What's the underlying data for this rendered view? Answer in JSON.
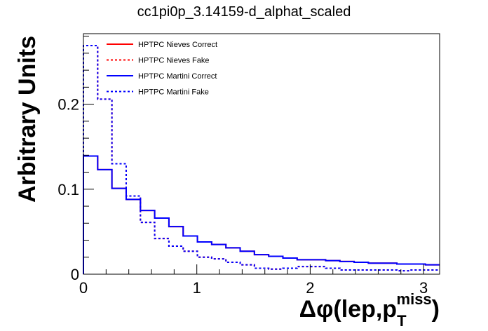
{
  "chart_data": {
    "type": "line",
    "title": "cc1pi0p_3.14159-d_alphat_scaled",
    "ylabel": "Arbitrary Units",
    "xlabel": {
      "prefix": "Δφ(lep,p",
      "superscript": "miss",
      "subscript": "T",
      "suffix": ")"
    },
    "xlim": [
      0,
      3.14159
    ],
    "ylim": [
      0,
      0.283
    ],
    "x_ticks": [
      {
        "value": 0,
        "label": "0"
      },
      {
        "value": 1,
        "label": "1"
      },
      {
        "value": 2,
        "label": "2"
      },
      {
        "value": 3,
        "label": "3"
      }
    ],
    "y_ticks": [
      {
        "value": 0,
        "label": "0"
      },
      {
        "value": 0.1,
        "label": "0.1"
      },
      {
        "value": 0.2,
        "label": "0.2"
      }
    ],
    "bin_width": 0.1256636,
    "legend_placement": "top-left",
    "series": [
      {
        "name": "HPTPC Nieves Correct",
        "color": "#ff0000",
        "style": "solid",
        "values": [
          0.139,
          0.123,
          0.101,
          0.088,
          0.075,
          0.066,
          0.056,
          0.045,
          0.038,
          0.035,
          0.031,
          0.027,
          0.023,
          0.021,
          0.019,
          0.017,
          0.017,
          0.016,
          0.015,
          0.014,
          0.013,
          0.013,
          0.012,
          0.012,
          0.011
        ]
      },
      {
        "name": "HPTPC Nieves Fake",
        "color": "#ff0000",
        "style": "dashed",
        "values": [
          0.269,
          0.206,
          0.13,
          0.092,
          0.061,
          0.042,
          0.033,
          0.027,
          0.02,
          0.018,
          0.014,
          0.011,
          0.007,
          0.006,
          0.007,
          0.009,
          0.009,
          0.007,
          0.005,
          0.005,
          0.005,
          0.005,
          0.004,
          0.005,
          0.005
        ]
      },
      {
        "name": "HPTPC Martini Correct",
        "color": "#0000ff",
        "style": "solid",
        "values": [
          0.139,
          0.123,
          0.101,
          0.088,
          0.075,
          0.066,
          0.056,
          0.045,
          0.038,
          0.035,
          0.031,
          0.027,
          0.023,
          0.021,
          0.019,
          0.017,
          0.017,
          0.016,
          0.015,
          0.014,
          0.013,
          0.013,
          0.012,
          0.012,
          0.011
        ]
      },
      {
        "name": "HPTPC Martini Fake",
        "color": "#0000ff",
        "style": "dashed",
        "values": [
          0.269,
          0.206,
          0.13,
          0.092,
          0.061,
          0.042,
          0.033,
          0.027,
          0.02,
          0.018,
          0.014,
          0.011,
          0.007,
          0.006,
          0.007,
          0.009,
          0.009,
          0.007,
          0.005,
          0.005,
          0.005,
          0.005,
          0.004,
          0.005,
          0.005
        ]
      }
    ]
  }
}
